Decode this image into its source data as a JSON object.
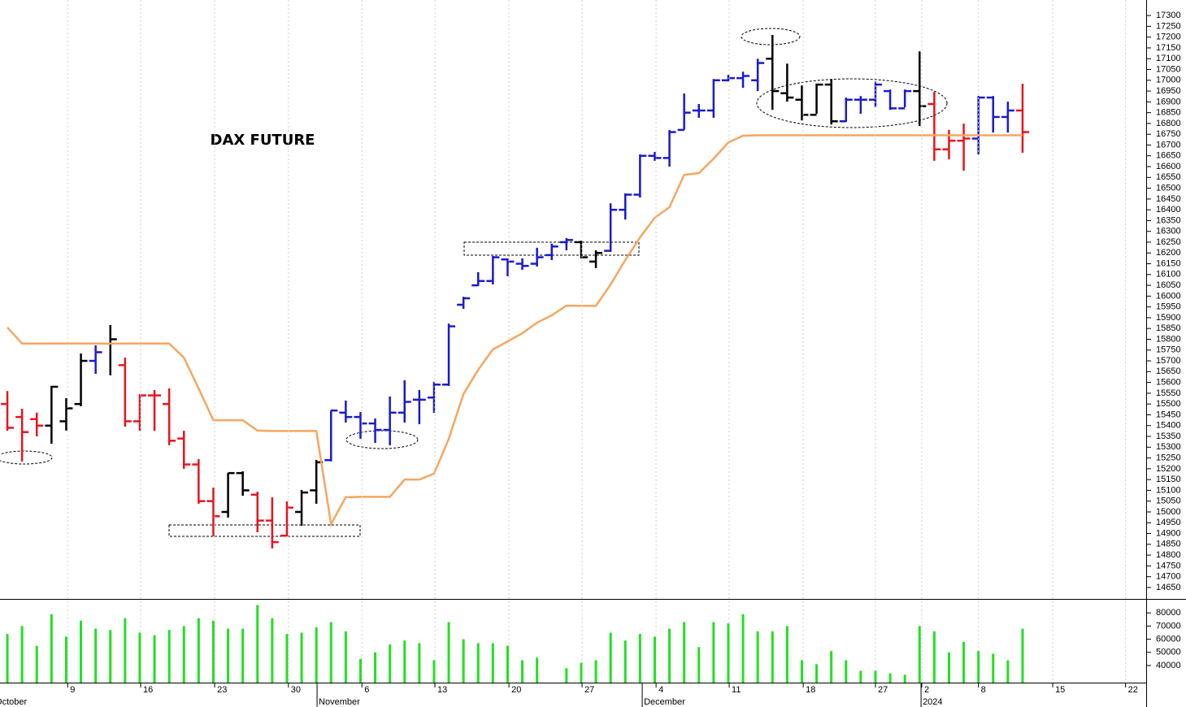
{
  "chart_data": [
    {
      "type": "ohlc",
      "title": "DAX FUTURE",
      "x": [
        0,
        1,
        2,
        3,
        4,
        5,
        6,
        7,
        8,
        9,
        10,
        11,
        12,
        13,
        14,
        15,
        16,
        17,
        18,
        19,
        20,
        21,
        22,
        23,
        24,
        25,
        26,
        27,
        28,
        29,
        30,
        31,
        32,
        33,
        34,
        35,
        36,
        37,
        38,
        39,
        40,
        41,
        42,
        43,
        44,
        45,
        46,
        47,
        48,
        49,
        50,
        51,
        52,
        53,
        54,
        55,
        56,
        57,
        58,
        59,
        60,
        61,
        62,
        63,
        64,
        65,
        66,
        67,
        68,
        69
      ],
      "open": [
        15500,
        15440,
        15430,
        15400,
        15420,
        15500,
        15700,
        15780,
        15680,
        15420,
        15540,
        15500,
        15340,
        15220,
        15050,
        15000,
        15180,
        15080,
        14960,
        14890,
        15000,
        15100,
        15240,
        15460,
        15440,
        15410,
        15380,
        15460,
        15520,
        15530,
        15590,
        15960,
        16050,
        16070,
        16170,
        16150,
        16150,
        16190,
        16250,
        16250,
        16160,
        16210,
        16400,
        16470,
        16650,
        16640,
        16770,
        16860,
        16860,
        17000,
        17010,
        17000,
        17100,
        16940,
        16910,
        16840,
        16980,
        16810,
        16910,
        16910,
        16950,
        16870,
        16950,
        16890,
        16680,
        16720,
        16730,
        16920,
        16830,
        16860
      ],
      "high": [
        15560,
        15478,
        15460,
        15584,
        15527,
        15734,
        15772,
        15866,
        15715,
        15546,
        15565,
        15572,
        15376,
        15245,
        15113,
        15181,
        15188,
        15094,
        15068,
        15049,
        15102,
        15241,
        15471,
        15516,
        15463,
        15433,
        15535,
        15610,
        15565,
        15603,
        15873,
        15997,
        16111,
        16186,
        16175,
        16175,
        16224,
        16243,
        16269,
        16257,
        16212,
        16430,
        16476,
        16657,
        16668,
        16770,
        16939,
        16890,
        17006,
        17025,
        17040,
        17100,
        17210,
        17077,
        16976,
        16985,
        17006,
        16920,
        16927,
        16995,
        16957,
        16957,
        17134,
        16946,
        16770,
        16799,
        16927,
        16927,
        16901,
        16984
      ],
      "low": [
        15376,
        15234,
        15350,
        15316,
        15377,
        15490,
        15640,
        15633,
        15395,
        15376,
        15376,
        15309,
        15200,
        15038,
        14887,
        14974,
        15075,
        14906,
        14831,
        14887,
        14936,
        15038,
        15234,
        15414,
        15339,
        15320,
        15309,
        15414,
        15407,
        15459,
        15584,
        15941,
        16047,
        16054,
        16092,
        16122,
        16137,
        16167,
        16212,
        16175,
        16130,
        16205,
        16355,
        16457,
        16627,
        16600,
        16770,
        16826,
        16826,
        16995,
        16965,
        16950,
        16863,
        16901,
        16814,
        16845,
        16795,
        16807,
        16845,
        16875,
        16863,
        16875,
        16788,
        16627,
        16634,
        16581,
        16657,
        16758,
        16758,
        16664
      ],
      "close": [
        15390,
        15370,
        15400,
        15580,
        15480,
        15700,
        15740,
        15800,
        15420,
        15540,
        15540,
        15330,
        15220,
        15050,
        14980,
        15180,
        15100,
        14960,
        14860,
        15020,
        15090,
        15230,
        15470,
        15440,
        15410,
        15380,
        15460,
        15510,
        15520,
        15590,
        15860,
        15990,
        16070,
        16180,
        16160,
        16140,
        16180,
        16230,
        16260,
        16180,
        16200,
        16400,
        16470,
        16650,
        16640,
        16760,
        16850,
        16860,
        17000,
        17010,
        17020,
        17080,
        16950,
        16920,
        16840,
        16980,
        16810,
        16910,
        16910,
        16980,
        16870,
        16950,
        16880,
        16680,
        16720,
        16730,
        16920,
        16830,
        16860,
        16760
      ],
      "colors": [
        "#e8141c",
        "#e8141c",
        "#e8141c",
        "#000000",
        "#000000",
        "#000000",
        "#1a1acd",
        "#000000",
        "#e8141c",
        "#e8141c",
        "#e8141c",
        "#e8141c",
        "#e8141c",
        "#e8141c",
        "#e8141c",
        "#000000",
        "#000000",
        "#e8141c",
        "#e8141c",
        "#e8141c",
        "#000000",
        "#000000",
        "#1a1acd",
        "#1a1acd",
        "#1a1acd",
        "#1a1acd",
        "#1a1acd",
        "#1a1acd",
        "#1a1acd",
        "#1a1acd",
        "#1a1acd",
        "#1a1acd",
        "#1a1acd",
        "#1a1acd",
        "#1a1acd",
        "#1a1acd",
        "#1a1acd",
        "#1a1acd",
        "#1a1acd",
        "#000000",
        "#000000",
        "#1a1acd",
        "#1a1acd",
        "#1a1acd",
        "#1a1acd",
        "#1a1acd",
        "#1a1acd",
        "#1a1acd",
        "#1a1acd",
        "#1a1acd",
        "#1a1acd",
        "#1a1acd",
        "#000000",
        "#000000",
        "#000000",
        "#000000",
        "#000000",
        "#1a1acd",
        "#1a1acd",
        "#1a1acd",
        "#1a1acd",
        "#1a1acd",
        "#000000",
        "#e8141c",
        "#e8141c",
        "#e8141c",
        "#1a1acd",
        "#1a1acd",
        "#1a1acd",
        "#e8141c"
      ],
      "series": [
        {
          "type": "line",
          "color": "#f5a661",
          "values": [
            15855,
            15780,
            15780,
            15780,
            15780,
            15780,
            15780,
            15780,
            15780,
            15780,
            15780,
            15780,
            15715,
            15572,
            15425,
            15425,
            15425,
            15377,
            15375,
            15375,
            15375,
            15375,
            14944,
            15068,
            15070,
            15070,
            15070,
            15150,
            15150,
            15177,
            15339,
            15546,
            15659,
            15753,
            15790,
            15828,
            15877,
            15911,
            15956,
            15955,
            15955,
            16054,
            16167,
            16272,
            16363,
            16412,
            16562,
            16570,
            16637,
            16712,
            16743,
            16745,
            16745,
            16745,
            16745,
            16745,
            16745,
            16745,
            16745,
            16745,
            16745,
            16745,
            16745,
            16745,
            16745,
            16745,
            16745,
            16745,
            16745,
            16745
          ]
        }
      ],
      "xlim": [
        -0.5,
        77.4
      ],
      "ylim": [
        14597,
        17372
      ],
      "yticks": [
        14650,
        14700,
        14750,
        14800,
        14850,
        14900,
        14950,
        15000,
        15050,
        15100,
        15150,
        15200,
        15250,
        15300,
        15350,
        15400,
        15450,
        15500,
        15550,
        15600,
        15650,
        15700,
        15750,
        15800,
        15850,
        15900,
        15950,
        16000,
        16050,
        16100,
        16150,
        16200,
        16250,
        16300,
        16350,
        16400,
        16450,
        16500,
        16550,
        16600,
        16650,
        16700,
        16750,
        16800,
        16850,
        16900,
        16950,
        17000,
        17050,
        17100,
        17150,
        17200,
        17250,
        17300
      ]
    },
    {
      "type": "bar",
      "color": "#22e022",
      "x": [
        0,
        1,
        2,
        3,
        4,
        5,
        6,
        7,
        8,
        9,
        10,
        11,
        12,
        13,
        14,
        15,
        16,
        17,
        18,
        19,
        20,
        21,
        22,
        23,
        24,
        25,
        26,
        27,
        28,
        29,
        30,
        31,
        32,
        33,
        34,
        35,
        36,
        37,
        38,
        39,
        40,
        41,
        42,
        43,
        44,
        45,
        46,
        47,
        48,
        49,
        50,
        51,
        52,
        53,
        54,
        55,
        56,
        57,
        58,
        59,
        60,
        61,
        62,
        63,
        64,
        65,
        66,
        67,
        68,
        69
      ],
      "values": [
        64000,
        70000,
        55000,
        79000,
        62000,
        74000,
        68000,
        67000,
        76000,
        65000,
        63000,
        67000,
        70000,
        76000,
        74000,
        68000,
        68000,
        86000,
        76000,
        64000,
        65000,
        69000,
        73000,
        66000,
        45000,
        50000,
        56000,
        59000,
        57000,
        44000,
        73000,
        60000,
        57000,
        57000,
        55000,
        44000,
        46000,
        null,
        38000,
        42000,
        44000,
        65000,
        59000,
        64000,
        62000,
        68000,
        73000,
        54000,
        73000,
        72000,
        79000,
        66000,
        66000,
        70000,
        44000,
        41000,
        51000,
        44000,
        36000,
        36000,
        34000,
        33000,
        70000,
        66000,
        50000,
        58000,
        51000,
        49000,
        44000,
        68000
      ],
      "xlim": [
        -0.5,
        77.4
      ],
      "ylim": [
        27000,
        90000
      ],
      "yticks": [
        40000,
        50000,
        60000,
        70000,
        80000
      ],
      "xticks": [
        {
          "value": 4.1,
          "label": "9"
        },
        {
          "value": 9.06,
          "label": "16"
        },
        {
          "value": 14.09,
          "label": "23"
        },
        {
          "value": 19.1,
          "label": "30"
        },
        {
          "value": 24.1,
          "label": "6"
        },
        {
          "value": 29.06,
          "label": "13"
        },
        {
          "value": 34.09,
          "label": "20"
        },
        {
          "value": 39.06,
          "label": "27"
        },
        {
          "value": 44.09,
          "label": "4"
        },
        {
          "value": 49.06,
          "label": "11"
        },
        {
          "value": 54.09,
          "label": "18"
        },
        {
          "value": 59.0,
          "label": "27"
        },
        {
          "value": 62.15,
          "label": "2"
        },
        {
          "value": 66.0,
          "label": "8"
        },
        {
          "value": 71.05,
          "label": "15"
        },
        {
          "value": 76.0,
          "label": "22"
        }
      ],
      "month_ticks": [
        {
          "value": -0.94,
          "label": "October"
        },
        {
          "value": 21.05,
          "label": "November"
        },
        {
          "value": 43.15,
          "label": "December"
        },
        {
          "value": 62.1,
          "label": "2024"
        }
      ]
    }
  ]
}
